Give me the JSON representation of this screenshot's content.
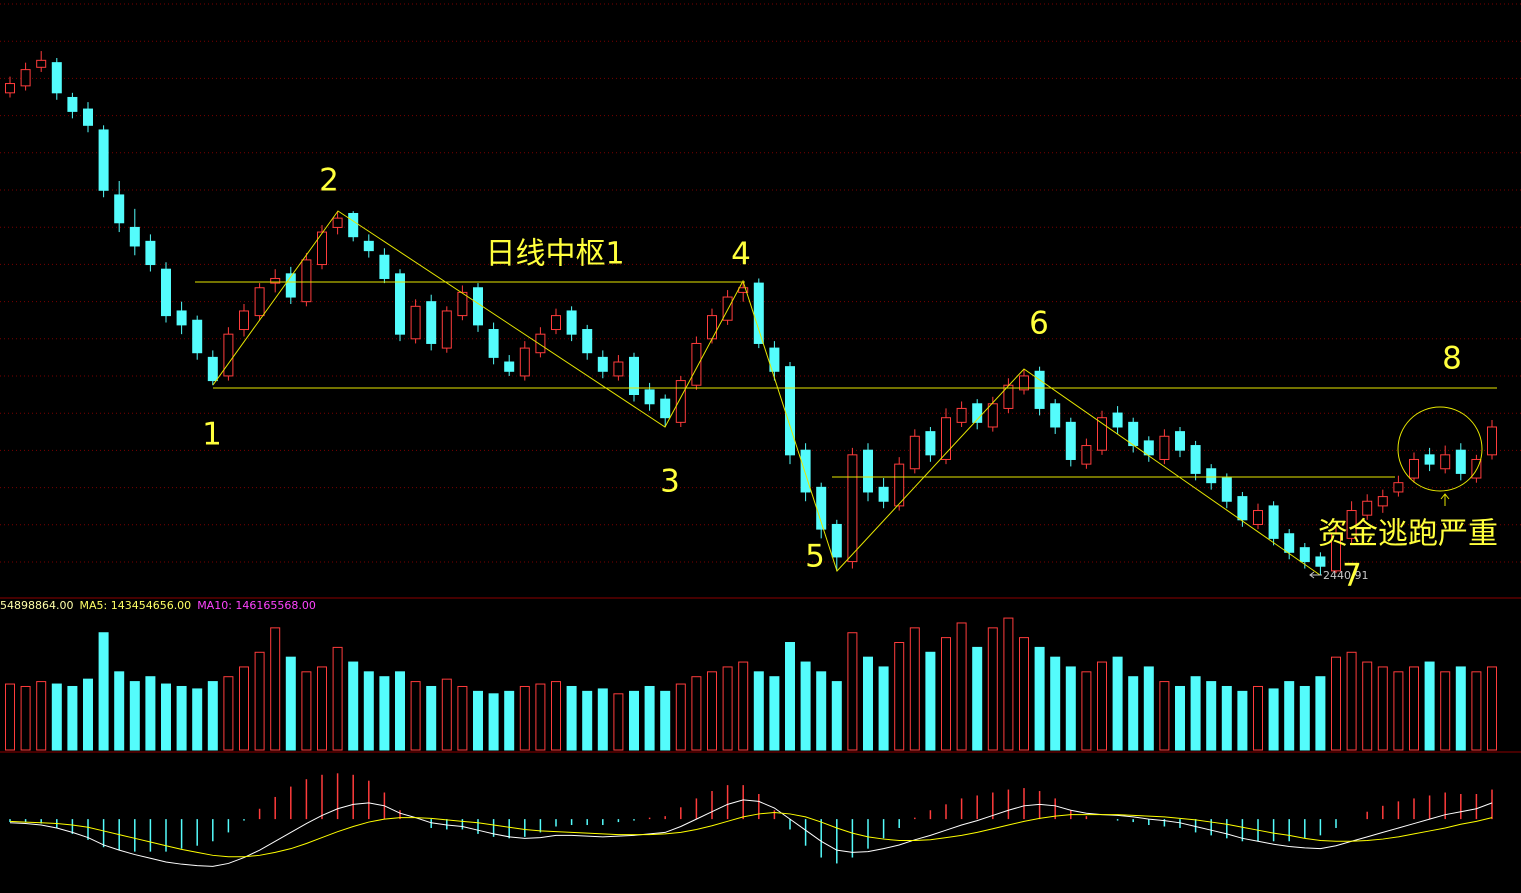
{
  "chart_data": [
    {
      "type": "candlestick",
      "colors": {
        "up": "#ff3c3c",
        "down": "#54fcfc"
      },
      "ylim": [
        2398,
        3680
      ],
      "open": [
        3480,
        3495,
        3535,
        3545,
        3470,
        3445,
        3400,
        3260,
        3190,
        3160,
        3100,
        3010,
        2990,
        2910,
        2870,
        2970,
        3000,
        3070,
        3090,
        3030,
        3110,
        3190,
        3220,
        3160,
        3130,
        3090,
        2950,
        3030,
        2930,
        3000,
        3060,
        2970,
        2900,
        2870,
        2920,
        2970,
        3010,
        2970,
        2910,
        2870,
        2910,
        2840,
        2820,
        2770,
        2850,
        2950,
        2990,
        3050,
        3070,
        2930,
        2890,
        2710,
        2630,
        2550,
        2470,
        2710,
        2630,
        2590,
        2670,
        2750,
        2690,
        2770,
        2810,
        2760,
        2800,
        2840,
        2880,
        2810,
        2770,
        2680,
        2710,
        2790,
        2770,
        2730,
        2690,
        2750,
        2720,
        2670,
        2650,
        2610,
        2550,
        2590,
        2530,
        2500,
        2480,
        2450,
        2520,
        2570,
        2590,
        2620,
        2650,
        2700,
        2670,
        2710,
        2650,
        2700
      ],
      "high": [
        3515,
        3545,
        3570,
        3555,
        3480,
        3460,
        3410,
        3290,
        3230,
        3175,
        3115,
        3030,
        3000,
        2925,
        2975,
        3025,
        3070,
        3100,
        3105,
        3135,
        3195,
        3225,
        3225,
        3175,
        3145,
        3100,
        3035,
        3045,
        3020,
        3065,
        3070,
        2985,
        2915,
        2945,
        2975,
        3015,
        3020,
        2980,
        2925,
        2915,
        2920,
        2855,
        2830,
        2870,
        2955,
        3015,
        3055,
        3075,
        3080,
        2945,
        2900,
        2725,
        2640,
        2560,
        2715,
        2725,
        2650,
        2695,
        2755,
        2760,
        2800,
        2815,
        2820,
        2825,
        2865,
        2885,
        2890,
        2820,
        2780,
        2735,
        2795,
        2805,
        2780,
        2740,
        2755,
        2760,
        2730,
        2680,
        2660,
        2620,
        2595,
        2600,
        2540,
        2510,
        2490,
        2545,
        2600,
        2615,
        2625,
        2655,
        2705,
        2715,
        2720,
        2725,
        2700,
        2775
      ],
      "low": [
        3470,
        3485,
        3525,
        3465,
        3425,
        3395,
        3255,
        3180,
        3130,
        3095,
        2985,
        2960,
        2905,
        2850,
        2860,
        2955,
        2990,
        3050,
        3025,
        3020,
        3100,
        3175,
        3160,
        3125,
        3070,
        2945,
        2940,
        2925,
        2920,
        2990,
        2965,
        2895,
        2870,
        2860,
        2910,
        2960,
        2945,
        2905,
        2865,
        2860,
        2815,
        2795,
        2760,
        2760,
        2840,
        2940,
        2980,
        3030,
        2930,
        2860,
        2680,
        2600,
        2520,
        2450,
        2455,
        2600,
        2585,
        2580,
        2660,
        2685,
        2680,
        2760,
        2755,
        2750,
        2790,
        2830,
        2785,
        2745,
        2675,
        2670,
        2700,
        2745,
        2705,
        2685,
        2680,
        2695,
        2645,
        2625,
        2585,
        2545,
        2540,
        2505,
        2475,
        2455,
        2440.91,
        2445,
        2510,
        2560,
        2575,
        2610,
        2640,
        2665,
        2660,
        2645,
        2640,
        2690
      ],
      "close": [
        3500,
        3530,
        3550,
        3480,
        3440,
        3410,
        3270,
        3200,
        3150,
        3110,
        3000,
        2980,
        2920,
        2860,
        2960,
        3010,
        3060,
        3080,
        3040,
        3120,
        3180,
        3210,
        3170,
        3140,
        3080,
        2960,
        3020,
        2940,
        3010,
        3050,
        2980,
        2910,
        2880,
        2930,
        2960,
        3000,
        2960,
        2920,
        2880,
        2900,
        2830,
        2810,
        2780,
        2860,
        2940,
        3000,
        3040,
        3060,
        2940,
        2880,
        2700,
        2620,
        2540,
        2480,
        2700,
        2620,
        2600,
        2680,
        2740,
        2700,
        2780,
        2800,
        2770,
        2810,
        2850,
        2870,
        2800,
        2760,
        2690,
        2720,
        2780,
        2760,
        2720,
        2700,
        2740,
        2710,
        2660,
        2640,
        2600,
        2560,
        2580,
        2520,
        2490,
        2470,
        2460,
        2530,
        2580,
        2600,
        2610,
        2640,
        2690,
        2680,
        2700,
        2660,
        2690,
        2760
      ],
      "annotations": [
        "1",
        "2",
        "3",
        "4",
        "5",
        "6",
        "7",
        "8",
        "日线中枢1",
        "资金逃跑严重"
      ]
    },
    {
      "type": "volume",
      "legend": [
        {
          "text": "54898864.00",
          "color": "#ffffaa"
        },
        {
          "text": "MA5: 143454656.00",
          "color": "#ffff66"
        },
        {
          "text": "MA10: 146165568.00",
          "color": "#ff44ff"
        }
      ],
      "ylim": [
        0,
        307000000
      ],
      "values": [
        135000000.0,
        130000000.0,
        140000000.0,
        135000000.0,
        130000000.0,
        145000000.0,
        240000000.0,
        160000000.0,
        140000000.0,
        150000000.0,
        135000000.0,
        130000000.0,
        125000000.0,
        140000000.0,
        150000000.0,
        170000000.0,
        200000000.0,
        250000000.0,
        190000000.0,
        160000000.0,
        170000000.0,
        210000000.0,
        180000000.0,
        160000000.0,
        150000000.0,
        160000000.0,
        140000000.0,
        130000000.0,
        145000000.0,
        130000000.0,
        120000000.0,
        115000000.0,
        120000000.0,
        130000000.0,
        135000000.0,
        140000000.0,
        130000000.0,
        120000000.0,
        125000000.0,
        115000000.0,
        120000000.0,
        130000000.0,
        120000000.0,
        135000000.0,
        150000000.0,
        160000000.0,
        170000000.0,
        180000000.0,
        160000000.0,
        150000000.0,
        220000000.0,
        180000000.0,
        160000000.0,
        140000000.0,
        240000000.0,
        190000000.0,
        170000000.0,
        220000000.0,
        250000000.0,
        200000000.0,
        230000000.0,
        260000000.0,
        210000000.0,
        250000000.0,
        270000000.0,
        230000000.0,
        210000000.0,
        190000000.0,
        170000000.0,
        160000000.0,
        180000000.0,
        190000000.0,
        150000000.0,
        170000000.0,
        140000000.0,
        130000000.0,
        150000000.0,
        140000000.0,
        130000000.0,
        120000000.0,
        130000000.0,
        125000000.0,
        140000000.0,
        130000000.0,
        150000000.0,
        190000000.0,
        200000000.0,
        180000000.0,
        170000000.0,
        160000000.0,
        170000000.0,
        180000000.0,
        160000000.0,
        170000000.0,
        160000000.0,
        170000000.0
      ]
    },
    {
      "type": "macd",
      "ylim": [
        -100,
        80
      ],
      "colors": {
        "up": "#ff3c3c",
        "down": "#54fcfc"
      },
      "values": [
        -4,
        -4,
        -6,
        -12,
        -20,
        -28,
        -38,
        -42,
        -44,
        -44,
        -44,
        -40,
        -36,
        -30,
        -18,
        -2,
        14,
        30,
        44,
        54,
        60,
        62,
        60,
        52,
        36,
        12,
        0,
        -12,
        -14,
        -14,
        -20,
        -24,
        -26,
        -24,
        -18,
        -10,
        -8,
        -8,
        -8,
        -4,
        -2,
        2,
        4,
        16,
        28,
        38,
        46,
        46,
        34,
        12,
        -14,
        -36,
        -52,
        -60,
        -52,
        -40,
        -26,
        -12,
        2,
        12,
        20,
        28,
        32,
        36,
        40,
        42,
        38,
        28,
        12,
        4,
        0,
        -2,
        -4,
        -8,
        -10,
        -12,
        -18,
        -22,
        -26,
        -30,
        -30,
        -30,
        -30,
        -26,
        -22,
        -12,
        0,
        10,
        18,
        24,
        28,
        32,
        36,
        34,
        34,
        40
      ],
      "series": [
        {
          "color": "#ffffff",
          "values": [
            -5,
            -6,
            -8,
            -12,
            -18,
            -25,
            -35,
            -42,
            -48,
            -53,
            -58,
            -61,
            -63,
            -64,
            -60,
            -52,
            -42,
            -30,
            -18,
            -6,
            5,
            14,
            20,
            22,
            18,
            8,
            2,
            -5,
            -8,
            -10,
            -15,
            -20,
            -24,
            -26,
            -25,
            -22,
            -22,
            -23,
            -24,
            -23,
            -22,
            -20,
            -18,
            -10,
            0,
            10,
            20,
            26,
            24,
            15,
            0,
            -15,
            -30,
            -42,
            -45,
            -44,
            -40,
            -35,
            -28,
            -22,
            -15,
            -8,
            -2,
            5,
            12,
            18,
            20,
            18,
            12,
            8,
            6,
            5,
            3,
            0,
            -2,
            -5,
            -10,
            -15,
            -20,
            -26,
            -30,
            -34,
            -37,
            -39,
            -40,
            -36,
            -30,
            -24,
            -18,
            -12,
            -6,
            0,
            6,
            10,
            14,
            22
          ]
        },
        {
          "color": "#ffff00",
          "values": [
            -3,
            -4,
            -5,
            -6,
            -8,
            -11,
            -16,
            -21,
            -26,
            -31,
            -36,
            -41,
            -45,
            -49,
            -51,
            -51,
            -49,
            -45,
            -40,
            -33,
            -25,
            -17,
            -10,
            -4,
            0,
            2,
            2,
            1,
            -1,
            -3,
            -5,
            -8,
            -11,
            -14,
            -16,
            -17,
            -18,
            -19,
            -20,
            -21,
            -21,
            -21,
            -20,
            -18,
            -14,
            -9,
            -3,
            3,
            7,
            9,
            7,
            3,
            -4,
            -12,
            -19,
            -24,
            -27,
            -29,
            -29,
            -28,
            -25,
            -22,
            -18,
            -13,
            -8,
            -3,
            1,
            4,
            6,
            6,
            6,
            6,
            5,
            4,
            3,
            1,
            -1,
            -4,
            -7,
            -11,
            -15,
            -19,
            -22,
            -26,
            -29,
            -30,
            -30,
            -29,
            -27,
            -24,
            -20,
            -16,
            -12,
            -7,
            -3,
            2
          ]
        }
      ]
    }
  ]
}
